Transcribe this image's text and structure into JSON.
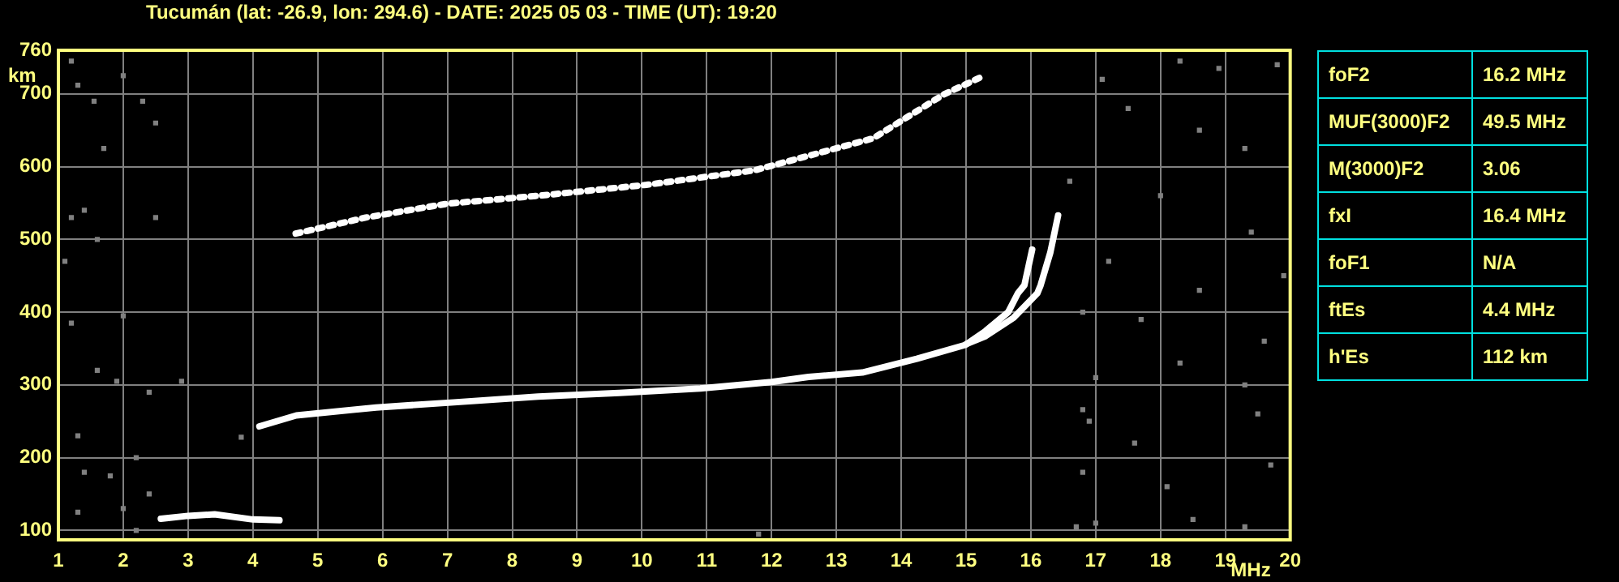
{
  "chart_data": {
    "type": "scatter",
    "title": "Tucumán (lat: -26.9, lon: 294.6) - DATE: 2025 05 03 - TIME (UT): 19:20",
    "xlabel": "MHz",
    "ylabel": "km",
    "xlim": [
      1,
      20
    ],
    "xticks": [
      1,
      2,
      3,
      4,
      5,
      6,
      7,
      8,
      9,
      10,
      11,
      12,
      13,
      14,
      15,
      16,
      17,
      18,
      19,
      20
    ],
    "ylim": [
      87,
      760
    ],
    "yticks": [
      100,
      200,
      300,
      400,
      500,
      600,
      700,
      760
    ],
    "grid": true,
    "legend": false,
    "marker": "square",
    "annotations": [
      "foF2",
      "16.2 MHz",
      "MUF(3000)F2",
      "49.5 MHz",
      "M(3000)F2",
      "3.06",
      "fxI",
      "16.4 MHz",
      "foF1",
      "N/A",
      "ftEs",
      "4.4 MHz",
      "h'Es",
      "112 km"
    ],
    "series": [
      {
        "type": "line",
        "color": "#ffffff",
        "line_style": "solid",
        "marker": "none",
        "x": [
          4.1,
          4.67,
          5.9,
          7.1,
          8.4,
          9.65,
          10.9,
          12,
          12.57,
          13.4,
          14.24,
          14.99,
          15.3,
          15.65,
          15.8,
          15.9,
          16.02
        ],
        "values": [
          243,
          258,
          269,
          276,
          284,
          289,
          295,
          304,
          311,
          317,
          336,
          355,
          374,
          400,
          426,
          437,
          486
        ]
      },
      {
        "type": "line",
        "color": "#ffffff",
        "line_style": "solid",
        "marker": "none",
        "x": [
          15.0,
          15.3,
          15.73,
          16.1,
          16.15,
          16.3,
          16.42
        ],
        "values": [
          356,
          367,
          392,
          426,
          437,
          482,
          533
        ]
      },
      {
        "type": "line",
        "color": "#ffffff",
        "line_style": "solid",
        "marker": "none",
        "x": [
          2.58,
          3.0,
          3.41,
          4.0,
          4.41
        ],
        "values": [
          116,
          120,
          122,
          115,
          114
        ]
      },
      {
        "type": "line",
        "color": "#ffffff",
        "line_style": "dotted",
        "marker": "none",
        "x": [
          4.66,
          5.74,
          6.99,
          8.41,
          10.07,
          11.74,
          12.49,
          13.57,
          14.65,
          15.23
        ],
        "values": [
          508,
          530,
          549,
          560,
          575,
          595,
          613,
          639,
          699,
          723
        ]
      },
      {
        "color": "#808080",
        "x": [
          1.2,
          1.3,
          1.55,
          2.0,
          2.3,
          1.7,
          2.5,
          1.4,
          1.2,
          2.5,
          1.6,
          1.1,
          1.2,
          2.0,
          1.9,
          1.6,
          2.4,
          1.3,
          1.4,
          1.8,
          2.2,
          2.4,
          2.0,
          1.3,
          2.9,
          2.2,
          3.82,
          17.1,
          18.3,
          18.9,
          19.8,
          17.5,
          18.6,
          19.3,
          16.6,
          18.0,
          19.4,
          17.2,
          18.6,
          19.9,
          16.8,
          17.7,
          19.6,
          17.0,
          18.3,
          19.3,
          16.9,
          17.6,
          19.5,
          16.8,
          18.1,
          19.7,
          17.0,
          18.5,
          19.3,
          16.7,
          11.8,
          16.8
        ],
        "values": [
          745,
          712,
          690,
          725,
          690,
          625,
          660,
          540,
          530,
          530,
          500,
          470,
          385,
          395,
          305,
          320,
          290,
          230,
          180,
          175,
          200,
          150,
          130,
          125,
          305,
          100,
          228,
          720,
          745,
          735,
          740,
          680,
          650,
          625,
          580,
          560,
          510,
          470,
          430,
          450,
          400,
          390,
          360,
          310,
          330,
          300,
          250,
          220,
          260,
          180,
          160,
          190,
          110,
          115,
          105,
          105,
          95,
          266
        ]
      }
    ]
  }
}
